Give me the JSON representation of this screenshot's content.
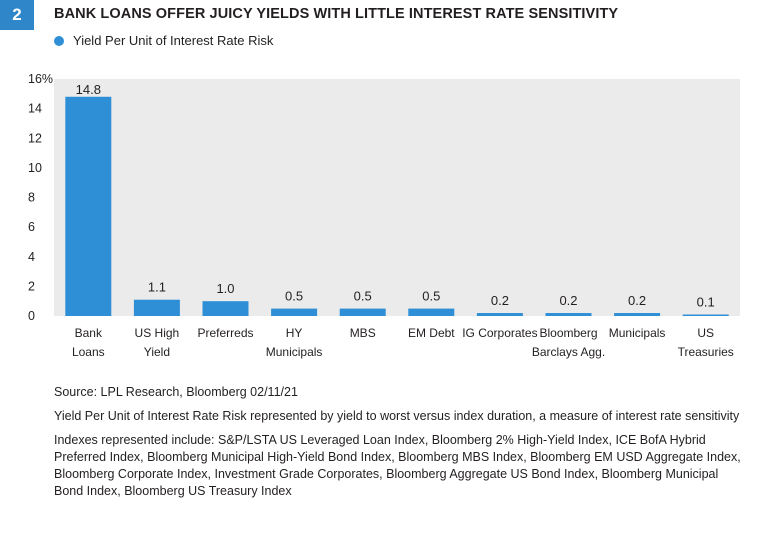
{
  "figure": {
    "number": "2",
    "title": "BANK LOANS OFFER JUICY YIELDS WITH LITTLE INTEREST RATE SENSITIVITY"
  },
  "chart_data": {
    "type": "bar",
    "title": "BANK LOANS OFFER JUICY YIELDS WITH LITTLE INTEREST RATE SENSITIVITY",
    "categories": [
      [
        "Bank",
        "Loans"
      ],
      [
        "US High",
        "Yield"
      ],
      [
        "Preferreds"
      ],
      [
        "HY",
        "Municipals"
      ],
      [
        "MBS"
      ],
      [
        "EM Debt"
      ],
      [
        "IG Corporates"
      ],
      [
        "Bloomberg",
        "Barclays Agg."
      ],
      [
        "Municipals"
      ],
      [
        "US",
        "Treasuries"
      ]
    ],
    "series": [
      {
        "name": "Yield Per Unit of Interest Rate Risk",
        "values": [
          14.8,
          1.1,
          1.0,
          0.5,
          0.5,
          0.5,
          0.2,
          0.2,
          0.2,
          0.1
        ],
        "labels": [
          "14.8",
          "1.1",
          "1.0",
          "0.5",
          "0.5",
          "0.5",
          "0.2",
          "0.2",
          "0.2",
          "0.1"
        ]
      }
    ],
    "ylim": [
      0,
      16
    ],
    "yticks": [
      0,
      2,
      4,
      6,
      8,
      10,
      12,
      14,
      16
    ],
    "ytick_labels": [
      "0",
      "2",
      "4",
      "6",
      "8",
      "10",
      "12",
      "14",
      "16%"
    ],
    "xlabel": "",
    "ylabel": "",
    "grid": false,
    "legend_position": "top-left",
    "colors": {
      "bar": "#2f8fd6",
      "plot_background": "#ebebeb",
      "badge": "#2f86c8"
    }
  },
  "notes": {
    "source": "Source: LPL Research, Bloomberg  02/11/21",
    "definition": "Yield Per Unit of Interest Rate Risk represented by yield to worst versus index duration, a measure of interest rate sensitivity",
    "indexes": "Indexes represented include:  S&P/LSTA US Leveraged Loan Index, Bloomberg 2% High-Yield Index, ICE BofA Hybrid Preferred Index, Bloomberg Municipal High-Yield Bond Index, Bloomberg MBS Index, Bloomberg EM USD Aggregate Index, Bloomberg Corporate Index, Investment Grade Corporates, Bloomberg Aggregate US Bond Index, Bloomberg Municipal Bond Index, Bloomberg US Treasury Index"
  }
}
